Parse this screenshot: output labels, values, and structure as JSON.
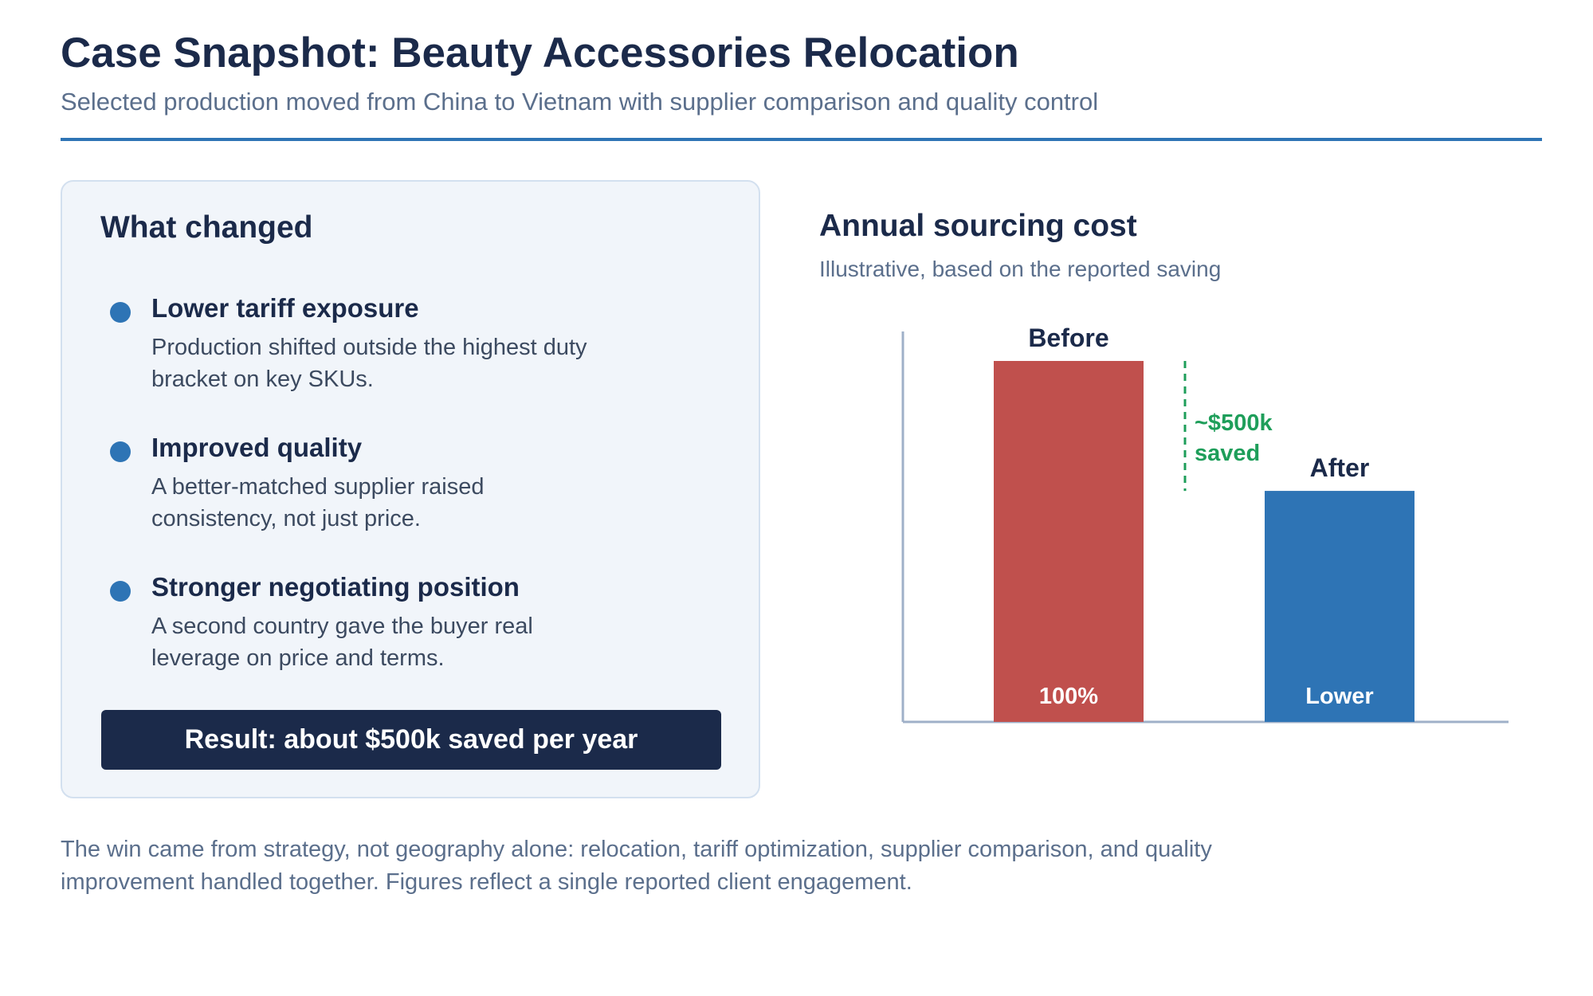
{
  "header": {
    "title": "Case Snapshot: Beauty Accessories Relocation",
    "subtitle": "Selected production moved from China to Vietnam with supplier comparison and quality control"
  },
  "what_changed": {
    "title": "What changed",
    "items": [
      {
        "heading": "Lower tariff exposure",
        "body": "Production shifted outside the highest duty bracket on key SKUs."
      },
      {
        "heading": "Improved quality",
        "body": "A better-matched supplier raised consistency, not just price."
      },
      {
        "heading": "Stronger negotiating position",
        "body": "A second country gave the buyer real leverage on price and terms."
      }
    ],
    "result": "Result: about $500k saved per year"
  },
  "chart_section": {
    "title": "Annual sourcing cost",
    "subtitle": "Illustrative, based on the reported saving"
  },
  "chart_data": {
    "type": "bar",
    "title": "Annual sourcing cost",
    "subtitle": "Illustrative, based on the reported saving",
    "categories": [
      "Before",
      "After"
    ],
    "values": [
      100,
      64
    ],
    "value_labels": [
      "100%",
      "Lower"
    ],
    "bar_colors": [
      "#c0504d",
      "#2e74b5"
    ],
    "ylim": [
      0,
      100
    ],
    "grid": false,
    "annotation": {
      "lines": [
        "~$500k",
        "saved"
      ],
      "color": "#1e9e5a",
      "between": [
        "Before",
        "After"
      ]
    }
  },
  "footer": {
    "text": "The win came from strategy, not geography alone: relocation, tariff optimization, supplier comparison, and quality improvement handled together. Figures reflect a single reported client engagement."
  },
  "colors": {
    "title": "#1b2a4a",
    "accent": "#2e74b5",
    "muted": "#5b6f8c",
    "card_bg": "#f1f5fa",
    "result_bg": "#1b2a4a"
  }
}
